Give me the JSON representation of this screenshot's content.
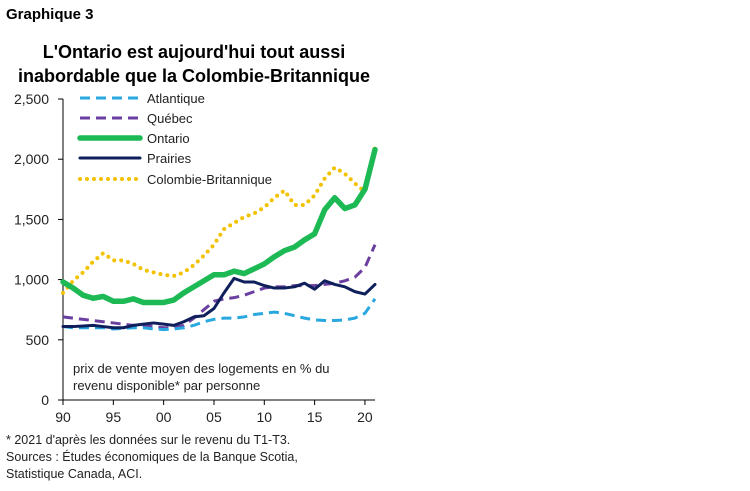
{
  "graph_label": "Graphique 3",
  "title_lines": [
    "L'Ontario est aujourd'hui tout aussi",
    "inabordable que la Colombie-Britannique"
  ],
  "footnotes": [
    "* 2021 d'après les données sur le revenu du T1-T3.",
    "Sources : Études économiques de la Banque Scotia,",
    "Statistique Canada, ACI."
  ],
  "colors": {
    "atlantique": "#29A8E0",
    "quebec": "#6B3FA0",
    "ontario": "#1DB954",
    "prairies": "#0F1F5C",
    "colombie_britannique": "#F2C200"
  },
  "chart_data": {
    "type": "line",
    "title": "L'Ontario est aujourd'hui tout aussi inabordable que la Colombie-Britannique",
    "xlabel": "",
    "ylabel": "",
    "ylim": [
      0,
      2500
    ],
    "xlim": [
      1990,
      2021
    ],
    "y_ticks": [
      0,
      500,
      1000,
      1500,
      2000,
      2500
    ],
    "y_tick_labels": [
      "0",
      "500",
      "1,000",
      "1,500",
      "2,000",
      "2,500"
    ],
    "x_ticks": [
      1990,
      1995,
      2000,
      2005,
      2010,
      2015,
      2020
    ],
    "x_tick_labels": [
      "90",
      "95",
      "00",
      "05",
      "10",
      "15",
      "20"
    ],
    "grid": false,
    "legend_position": "top-left",
    "note": [
      "prix de vente moyen des logements en % du",
      "revenu disponible* par personne"
    ],
    "x": [
      1990,
      1991,
      1992,
      1993,
      1994,
      1995,
      1996,
      1997,
      1998,
      1999,
      2000,
      2001,
      2002,
      2003,
      2004,
      2005,
      2006,
      2007,
      2008,
      2009,
      2010,
      2011,
      2012,
      2013,
      2014,
      2015,
      2016,
      2017,
      2018,
      2019,
      2020,
      2021
    ],
    "series": [
      {
        "name": "Atlantique",
        "style": "dashed",
        "color_key": "atlantique",
        "values": [
          610,
          600,
          600,
          600,
          600,
          590,
          595,
          600,
          600,
          590,
          585,
          590,
          600,
          620,
          650,
          670,
          680,
          680,
          690,
          710,
          720,
          730,
          720,
          700,
          680,
          665,
          660,
          660,
          665,
          680,
          720,
          840
        ]
      },
      {
        "name": "Québec",
        "style": "dashed",
        "color_key": "quebec",
        "values": [
          690,
          680,
          670,
          660,
          650,
          640,
          630,
          620,
          620,
          610,
          600,
          600,
          620,
          680,
          750,
          820,
          840,
          850,
          870,
          900,
          930,
          940,
          940,
          950,
          950,
          950,
          960,
          970,
          990,
          1020,
          1100,
          1290
        ]
      },
      {
        "name": "Ontario",
        "style": "solid-thick",
        "color_key": "ontario",
        "values": [
          980,
          930,
          870,
          845,
          860,
          820,
          820,
          840,
          810,
          810,
          810,
          830,
          890,
          940,
          990,
          1040,
          1040,
          1070,
          1050,
          1090,
          1130,
          1190,
          1240,
          1270,
          1330,
          1380,
          1580,
          1680,
          1590,
          1620,
          1750,
          2080
        ]
      },
      {
        "name": "Prairies",
        "style": "solid",
        "color_key": "prairies",
        "values": [
          610,
          610,
          615,
          620,
          610,
          600,
          600,
          620,
          630,
          640,
          630,
          620,
          650,
          690,
          700,
          760,
          890,
          1010,
          980,
          980,
          950,
          930,
          930,
          940,
          970,
          920,
          990,
          960,
          940,
          900,
          880,
          960
        ]
      },
      {
        "name": "Colombie-Britannique",
        "style": "dotted",
        "color_key": "colombie_britannique",
        "values": [
          890,
          990,
          1060,
          1150,
          1220,
          1160,
          1160,
          1130,
          1080,
          1060,
          1040,
          1030,
          1060,
          1120,
          1200,
          1290,
          1420,
          1470,
          1520,
          1550,
          1600,
          1680,
          1740,
          1620,
          1620,
          1700,
          1840,
          1930,
          1880,
          1800,
          1730,
          2100
        ]
      }
    ]
  }
}
